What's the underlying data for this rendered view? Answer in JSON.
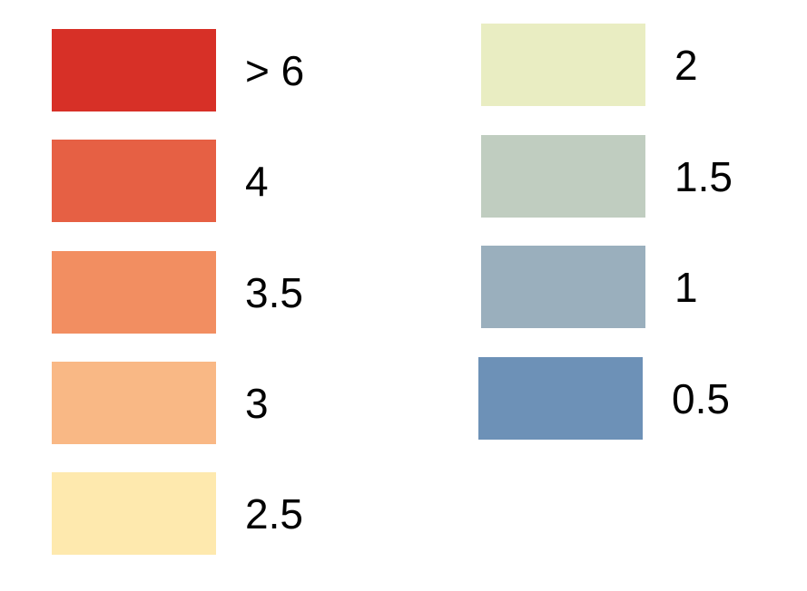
{
  "legend": {
    "items": [
      {
        "label": "> 6",
        "color": "#d73027"
      },
      {
        "label": "4",
        "color": "#e66044"
      },
      {
        "label": "3.5",
        "color": "#f28e61"
      },
      {
        "label": "3",
        "color": "#f9b885"
      },
      {
        "label": "2.5",
        "color": "#fee9ae"
      },
      {
        "label": "2",
        "color": "#e9edc2"
      },
      {
        "label": "1.5",
        "color": "#c0cdc0"
      },
      {
        "label": "1",
        "color": "#9aafbd"
      },
      {
        "label": "0.5",
        "color": "#6d91b7"
      }
    ]
  }
}
